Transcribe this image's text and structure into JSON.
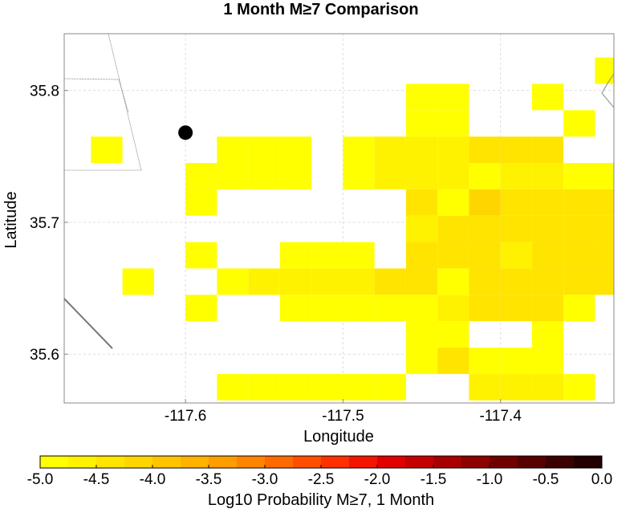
{
  "chart_data": {
    "type": "heatmap",
    "title": "1 Month M≥7 Comparison",
    "xlabel": "Longitude",
    "ylabel": "Latitude",
    "xlim": [
      -117.677,
      -117.328
    ],
    "ylim": [
      35.563,
      35.843
    ],
    "xticks": [
      -117.6,
      -117.5,
      -117.4
    ],
    "xtick_labels": [
      "-117.6",
      "-117.5",
      "-117.4"
    ],
    "yticks": [
      35.6,
      35.7,
      35.8
    ],
    "ytick_labels": [
      "35.6",
      "35.7",
      "35.8"
    ],
    "grid": true,
    "cell_size_deg": [
      0.02,
      0.02
    ],
    "grid_origin": {
      "lon0": -117.6,
      "lat0": 35.845
    },
    "cells": [
      {
        "col": 14,
        "row": 0,
        "value": -4.9
      },
      {
        "col": 13,
        "row": 1,
        "value": -5.0
      },
      {
        "col": 14,
        "row": 1,
        "value": -5.0
      },
      {
        "col": 7,
        "row": 2,
        "value": -5.0
      },
      {
        "col": 8,
        "row": 2,
        "value": -4.8
      },
      {
        "col": 11,
        "row": 2,
        "value": -5.0
      },
      {
        "col": 7,
        "row": 3,
        "value": -5.0
      },
      {
        "col": 8,
        "row": 3,
        "value": -4.8
      },
      {
        "col": 12,
        "row": 3,
        "value": -5.0
      },
      {
        "col": 16,
        "row": 3,
        "value": -5.0
      },
      {
        "col": -3,
        "row": 4,
        "value": -4.8
      },
      {
        "col": 1,
        "row": 4,
        "value": -5.0
      },
      {
        "col": 2,
        "row": 4,
        "value": -5.0
      },
      {
        "col": 3,
        "row": 4,
        "value": -5.0
      },
      {
        "col": 5,
        "row": 4,
        "value": -4.8
      },
      {
        "col": 6,
        "row": 4,
        "value": -4.7
      },
      {
        "col": 7,
        "row": 4,
        "value": -4.7
      },
      {
        "col": 8,
        "row": 4,
        "value": -4.7
      },
      {
        "col": 9,
        "row": 4,
        "value": -4.4
      },
      {
        "col": 10,
        "row": 4,
        "value": -4.4
      },
      {
        "col": 11,
        "row": 4,
        "value": -4.4
      },
      {
        "col": 14,
        "row": 4,
        "value": -5.0
      },
      {
        "col": 15,
        "row": 4,
        "value": -5.0
      },
      {
        "col": 16,
        "row": 4,
        "value": -4.8
      },
      {
        "col": 17,
        "row": 4,
        "value": -5.0
      },
      {
        "col": 0,
        "row": 5,
        "value": -5.0
      },
      {
        "col": 1,
        "row": 5,
        "value": -5.0
      },
      {
        "col": 2,
        "row": 5,
        "value": -5.0
      },
      {
        "col": 3,
        "row": 5,
        "value": -5.0
      },
      {
        "col": 5,
        "row": 5,
        "value": -4.8
      },
      {
        "col": 6,
        "row": 5,
        "value": -4.7
      },
      {
        "col": 7,
        "row": 5,
        "value": -4.7
      },
      {
        "col": 8,
        "row": 5,
        "value": -4.7
      },
      {
        "col": 9,
        "row": 5,
        "value": -4.8
      },
      {
        "col": 10,
        "row": 5,
        "value": -4.6
      },
      {
        "col": 11,
        "row": 5,
        "value": -4.6
      },
      {
        "col": 12,
        "row": 5,
        "value": -5.0
      },
      {
        "col": 13,
        "row": 5,
        "value": -5.0
      },
      {
        "col": 14,
        "row": 5,
        "value": -4.7
      },
      {
        "col": 0,
        "row": 6,
        "value": -4.8
      },
      {
        "col": 7,
        "row": 6,
        "value": -4.3
      },
      {
        "col": 8,
        "row": 6,
        "value": -5.0
      },
      {
        "col": 9,
        "row": 6,
        "value": -4.2
      },
      {
        "col": 10,
        "row": 6,
        "value": -4.4
      },
      {
        "col": 11,
        "row": 6,
        "value": -4.4
      },
      {
        "col": 12,
        "row": 6,
        "value": -4.4
      },
      {
        "col": 13,
        "row": 6,
        "value": -4.4
      },
      {
        "col": 14,
        "row": 6,
        "value": -4.4
      },
      {
        "col": 15,
        "row": 6,
        "value": -5.0
      },
      {
        "col": 16,
        "row": 6,
        "value": -5.0
      },
      {
        "col": 17,
        "row": 6,
        "value": -5.0
      },
      {
        "col": 18,
        "row": 6,
        "value": -5.0
      },
      {
        "col": 7,
        "row": 7,
        "value": -4.6
      },
      {
        "col": 8,
        "row": 7,
        "value": -4.5
      },
      {
        "col": 9,
        "row": 7,
        "value": -4.5
      },
      {
        "col": 10,
        "row": 7,
        "value": -4.5
      },
      {
        "col": 11,
        "row": 7,
        "value": -4.5
      },
      {
        "col": 12,
        "row": 7,
        "value": -4.5
      },
      {
        "col": 13,
        "row": 7,
        "value": -4.5
      },
      {
        "col": 14,
        "row": 7,
        "value": -5.0
      },
      {
        "col": 0,
        "row": 8,
        "value": -5.0
      },
      {
        "col": 3,
        "row": 8,
        "value": -5.0
      },
      {
        "col": 4,
        "row": 8,
        "value": -5.0
      },
      {
        "col": 5,
        "row": 8,
        "value": -5.0
      },
      {
        "col": 7,
        "row": 8,
        "value": -4.5
      },
      {
        "col": 8,
        "row": 8,
        "value": -4.5
      },
      {
        "col": 9,
        "row": 8,
        "value": -4.5
      },
      {
        "col": 10,
        "row": 8,
        "value": -4.7
      },
      {
        "col": 11,
        "row": 8,
        "value": -4.5
      },
      {
        "col": 12,
        "row": 8,
        "value": -4.5
      },
      {
        "col": 13,
        "row": 8,
        "value": -4.5
      },
      {
        "col": 14,
        "row": 8,
        "value": -5.0
      },
      {
        "col": 15,
        "row": 8,
        "value": -4.8
      },
      {
        "col": -2,
        "row": 9,
        "value": -5.0
      },
      {
        "col": 1,
        "row": 9,
        "value": -4.8
      },
      {
        "col": 2,
        "row": 9,
        "value": -4.7
      },
      {
        "col": 3,
        "row": 9,
        "value": -4.7
      },
      {
        "col": 4,
        "row": 9,
        "value": -4.7
      },
      {
        "col": 5,
        "row": 9,
        "value": -4.7
      },
      {
        "col": 6,
        "row": 9,
        "value": -4.5
      },
      {
        "col": 7,
        "row": 9,
        "value": -4.5
      },
      {
        "col": 8,
        "row": 9,
        "value": -5.0
      },
      {
        "col": 9,
        "row": 9,
        "value": -4.5
      },
      {
        "col": 10,
        "row": 9,
        "value": -4.5
      },
      {
        "col": 11,
        "row": 9,
        "value": -4.5
      },
      {
        "col": 12,
        "row": 9,
        "value": -4.5
      },
      {
        "col": 13,
        "row": 9,
        "value": -4.5
      },
      {
        "col": 14,
        "row": 9,
        "value": -4.8
      },
      {
        "col": 18,
        "row": 9,
        "value": -5.0
      },
      {
        "col": 0,
        "row": 10,
        "value": -5.0
      },
      {
        "col": 3,
        "row": 10,
        "value": -4.8
      },
      {
        "col": 4,
        "row": 10,
        "value": -4.8
      },
      {
        "col": 5,
        "row": 10,
        "value": -4.8
      },
      {
        "col": 6,
        "row": 10,
        "value": -4.8
      },
      {
        "col": 7,
        "row": 10,
        "value": -4.8
      },
      {
        "col": 8,
        "row": 10,
        "value": -4.6
      },
      {
        "col": 9,
        "row": 10,
        "value": -4.5
      },
      {
        "col": 10,
        "row": 10,
        "value": -4.5
      },
      {
        "col": 11,
        "row": 10,
        "value": -4.5
      },
      {
        "col": 12,
        "row": 10,
        "value": -5.0
      },
      {
        "col": 7,
        "row": 11,
        "value": -5.0
      },
      {
        "col": 8,
        "row": 11,
        "value": -5.0
      },
      {
        "col": 11,
        "row": 11,
        "value": -5.0
      },
      {
        "col": 14,
        "row": 11,
        "value": -4.8
      },
      {
        "col": 17,
        "row": 11,
        "value": -5.0
      },
      {
        "col": 7,
        "row": 12,
        "value": -4.8
      },
      {
        "col": 8,
        "row": 12,
        "value": -4.5
      },
      {
        "col": 9,
        "row": 12,
        "value": -4.8
      },
      {
        "col": 10,
        "row": 12,
        "value": -4.8
      },
      {
        "col": 11,
        "row": 12,
        "value": -4.8
      },
      {
        "col": 14,
        "row": 12,
        "value": -4.8
      },
      {
        "col": 15,
        "row": 12,
        "value": -5.0
      },
      {
        "col": 1,
        "row": 13,
        "value": -4.8
      },
      {
        "col": 2,
        "row": 13,
        "value": -4.8
      },
      {
        "col": 3,
        "row": 13,
        "value": -4.8
      },
      {
        "col": 4,
        "row": 13,
        "value": -4.8
      },
      {
        "col": 5,
        "row": 13,
        "value": -4.8
      },
      {
        "col": 6,
        "row": 13,
        "value": -4.8
      },
      {
        "col": 9,
        "row": 13,
        "value": -4.7
      },
      {
        "col": 10,
        "row": 13,
        "value": -4.7
      },
      {
        "col": 11,
        "row": 13,
        "value": -4.7
      },
      {
        "col": 12,
        "row": 13,
        "value": -4.8
      }
    ],
    "marker": {
      "lon": -117.6,
      "lat": 35.768,
      "color": "#000000"
    },
    "colorbar": {
      "label": "Log10 Probability M≥7, 1 Month",
      "range": [
        -5.0,
        0.0
      ],
      "ticks": [
        -5.0,
        -4.5,
        -4.0,
        -3.5,
        -3.0,
        -2.5,
        -2.0,
        -1.5,
        -1.0,
        -0.5,
        0.0
      ],
      "tick_labels": [
        "-5.0",
        "-4.5",
        "-4.0",
        "-3.5",
        "-3.0",
        "-2.5",
        "-2.0",
        "-1.5",
        "-1.0",
        "-0.5",
        "0.0"
      ],
      "placement": "bottom",
      "colors": [
        "#ffff00",
        "#fff200",
        "#ffe400",
        "#ffd500",
        "#ffc400",
        "#ffb200",
        "#ff9d00",
        "#ff8500",
        "#ff6a00",
        "#ff4e00",
        "#ff3000",
        "#f51400",
        "#e00000",
        "#c40000",
        "#a80000",
        "#8c0000",
        "#700000",
        "#560000",
        "#3c0000",
        "#220000"
      ]
    }
  }
}
